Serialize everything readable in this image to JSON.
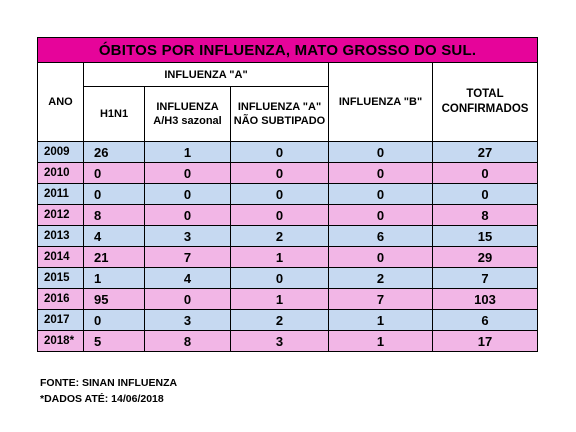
{
  "title": "ÓBITOS POR INFLUENZA, MATO GROSSO DO SUL.",
  "headers": {
    "ano": "ANO",
    "influenza_a_group": "INFLUENZA \"A\"",
    "h1n1": "H1N1",
    "h3_line1": "INFLUENZA",
    "h3_line2": "A/H3 sazonal",
    "nst_line1": "INFLUENZA \"A\"",
    "nst_line2": "NÃO SUBTIPADO",
    "influenza_b": "INFLUENZA \"B\"",
    "total_line1": "TOTAL",
    "total_line2": "CONFIRMADOS"
  },
  "rows": [
    {
      "year": "2009",
      "h1n1": "26",
      "h3": "1",
      "nst": "0",
      "b": "0",
      "total": "27",
      "color": "#c6d9f1"
    },
    {
      "year": "2010",
      "h1n1": "0",
      "h3": "0",
      "nst": "0",
      "b": "0",
      "total": "0",
      "color": "#f2b6e6"
    },
    {
      "year": "2011",
      "h1n1": "0",
      "h3": "0",
      "nst": "0",
      "b": "0",
      "total": "0",
      "color": "#c6d9f1"
    },
    {
      "year": "2012",
      "h1n1": "8",
      "h3": "0",
      "nst": "0",
      "b": "0",
      "total": "8",
      "color": "#f2b6e6"
    },
    {
      "year": "2013",
      "h1n1": "4",
      "h3": "3",
      "nst": "2",
      "b": "6",
      "total": "15",
      "color": "#c6d9f1"
    },
    {
      "year": "2014",
      "h1n1": "21",
      "h3": "7",
      "nst": "1",
      "b": "0",
      "total": "29",
      "color": "#f2b6e6"
    },
    {
      "year": "2015",
      "h1n1": "1",
      "h3": "4",
      "nst": "0",
      "b": "2",
      "total": "7",
      "color": "#c6d9f1"
    },
    {
      "year": "2016",
      "h1n1": "95",
      "h3": "0",
      "nst": "1",
      "b": "7",
      "total": "103",
      "color": "#f2b6e6"
    },
    {
      "year": "2017",
      "h1n1": "0",
      "h3": "3",
      "nst": "2",
      "b": "1",
      "total": "6",
      "color": "#c6d9f1"
    },
    {
      "year": "2018*",
      "h1n1": "5",
      "h3": "8",
      "nst": "3",
      "b": "1",
      "total": "17",
      "color": "#f2b6e6"
    }
  ],
  "footer": {
    "source": "FONTE: SINAN INFLUENZA",
    "note": "*DADOS ATÉ: 14/06/2018"
  },
  "colors": {
    "title_bg": "#e6049a",
    "row_blue": "#c6d9f1",
    "row_pink": "#f2b6e6",
    "total_header": "#ff0000"
  }
}
